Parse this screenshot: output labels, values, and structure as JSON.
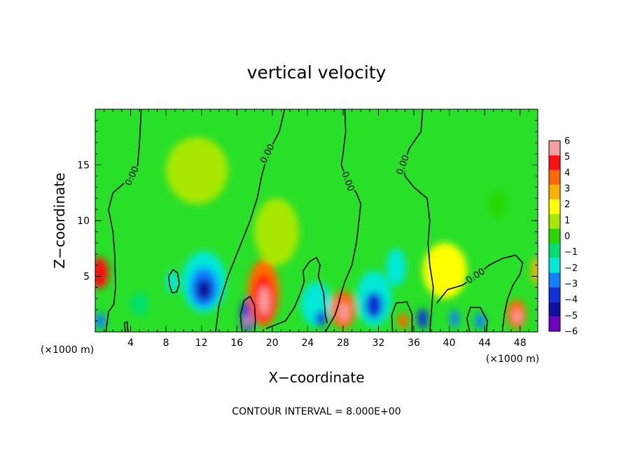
{
  "chart_data": {
    "type": "heatmap",
    "title": "vertical velocity",
    "xlabel": "X−coordinate",
    "ylabel": "Z−coordinate",
    "x_unit_left": "(×1000 m)",
    "x_unit_right": "(×1000 m)",
    "xlim": [
      0,
      50
    ],
    "ylim": [
      0,
      20
    ],
    "x_ticks": [
      {
        "value": 4,
        "label": "4"
      },
      {
        "value": 8,
        "label": "8"
      },
      {
        "value": 12,
        "label": "12"
      },
      {
        "value": 16,
        "label": "16"
      },
      {
        "value": 20,
        "label": "20"
      },
      {
        "value": 24,
        "label": "24"
      },
      {
        "value": 28,
        "label": "28"
      },
      {
        "value": 32,
        "label": "32"
      },
      {
        "value": 36,
        "label": "36"
      },
      {
        "value": 40,
        "label": "40"
      },
      {
        "value": 44,
        "label": "44"
      },
      {
        "value": 48,
        "label": "48"
      }
    ],
    "y_ticks": [
      {
        "value": 5,
        "label": "5"
      },
      {
        "value": 10,
        "label": "10"
      },
      {
        "value": 15,
        "label": "15"
      }
    ],
    "colorbar": {
      "levels": [
        "6",
        "5",
        "4",
        "3",
        "2",
        "1",
        "0",
        "−1",
        "−2",
        "−3",
        "−4",
        "−5",
        "−6"
      ],
      "colors": [
        "#f4a0a0",
        "#ff1010",
        "#ff6a00",
        "#ffb000",
        "#ffff00",
        "#a8e800",
        "#28d800",
        "#00e070",
        "#00e8d8",
        "#1080ff",
        "#1030d8",
        "#1010a0",
        "#7000c0"
      ]
    },
    "background_color": "#28e028",
    "cells": [
      {
        "x": 0.5,
        "z": 5.3,
        "w": 2.0,
        "h": 2.8,
        "value": 4.5
      },
      {
        "x": 0.6,
        "z": 1.0,
        "w": 1.2,
        "h": 1.4,
        "value": -3.5
      },
      {
        "x": 5.0,
        "z": 2.5,
        "w": 2.0,
        "h": 2.0,
        "value": -1.0
      },
      {
        "x": 12.3,
        "z": 4.5,
        "w": 5.0,
        "h": 5.5,
        "value": -2.0
      },
      {
        "x": 12.3,
        "z": 4.0,
        "w": 3.2,
        "h": 3.6,
        "value": -3.5
      },
      {
        "x": 12.3,
        "z": 3.8,
        "w": 1.8,
        "h": 2.0,
        "value": -5.0
      },
      {
        "x": 8.7,
        "z": 4.5,
        "w": 1.4,
        "h": 2.0,
        "value": -2.0
      },
      {
        "x": 17.2,
        "z": 1.5,
        "w": 1.6,
        "h": 3.0,
        "value": -4.5
      },
      {
        "x": 17.2,
        "z": 1.0,
        "w": 0.6,
        "h": 1.0,
        "value": 6.0
      },
      {
        "x": 19.0,
        "z": 3.5,
        "w": 3.6,
        "h": 6.0,
        "value": 3.5
      },
      {
        "x": 19.0,
        "z": 3.0,
        "w": 2.4,
        "h": 4.2,
        "value": 5.0
      },
      {
        "x": 19.1,
        "z": 2.8,
        "w": 1.2,
        "h": 2.6,
        "value": 6.0
      },
      {
        "x": 25.0,
        "z": 2.5,
        "w": 3.5,
        "h": 4.0,
        "value": -2.0
      },
      {
        "x": 25.5,
        "z": 1.2,
        "w": 1.2,
        "h": 1.4,
        "value": -4.0
      },
      {
        "x": 28.0,
        "z": 2.0,
        "w": 2.8,
        "h": 3.4,
        "value": 4.0
      },
      {
        "x": 28.1,
        "z": 1.8,
        "w": 1.1,
        "h": 1.6,
        "value": 6.0
      },
      {
        "x": 31.5,
        "z": 3.0,
        "w": 4.0,
        "h": 5.0,
        "value": -2.0
      },
      {
        "x": 31.5,
        "z": 2.4,
        "w": 2.0,
        "h": 2.4,
        "value": -4.0
      },
      {
        "x": 34.0,
        "z": 5.8,
        "w": 2.2,
        "h": 3.4,
        "value": -2.0
      },
      {
        "x": 34.8,
        "z": 1.0,
        "w": 1.2,
        "h": 1.4,
        "value": 4.0
      },
      {
        "x": 37.0,
        "z": 1.2,
        "w": 1.2,
        "h": 1.8,
        "value": -4.0
      },
      {
        "x": 39.5,
        "z": 5.5,
        "w": 5.0,
        "h": 5.0,
        "value": 1.5
      },
      {
        "x": 40.6,
        "z": 1.2,
        "w": 1.0,
        "h": 1.6,
        "value": -3.0
      },
      {
        "x": 43.5,
        "z": 1.0,
        "w": 1.2,
        "h": 1.4,
        "value": -3.5
      },
      {
        "x": 47.6,
        "z": 1.6,
        "w": 2.2,
        "h": 2.6,
        "value": 4.0
      },
      {
        "x": 47.7,
        "z": 1.4,
        "w": 0.9,
        "h": 1.2,
        "value": 6.0
      },
      {
        "x": 49.8,
        "z": 5.5,
        "w": 1.0,
        "h": 2.4,
        "value": 3.0
      },
      {
        "x": 11.5,
        "z": 14.5,
        "w": 7.0,
        "h": 6.0,
        "value": 0.5
      },
      {
        "x": 20.5,
        "z": 9.0,
        "w": 5.0,
        "h": 6.0,
        "value": 1.2
      },
      {
        "x": 45.5,
        "z": 11.5,
        "w": 2.0,
        "h": 2.5,
        "value": -0.5
      }
    ],
    "contours": [
      {
        "value": 0,
        "label": "0.00",
        "points": [
          [
            5.2,
            20
          ],
          [
            5.0,
            17
          ],
          [
            4.8,
            15
          ],
          [
            4.2,
            14
          ],
          [
            2.0,
            12.5
          ],
          [
            1.5,
            11
          ],
          [
            2.0,
            9
          ],
          [
            2.2,
            7
          ],
          [
            2.3,
            4
          ],
          [
            2.1,
            2.5
          ],
          [
            1.5,
            1.8
          ],
          [
            1.2,
            0
          ]
        ]
      },
      {
        "value": 0,
        "label": "0.00",
        "points": [
          [
            21.4,
            20
          ],
          [
            20.8,
            18
          ],
          [
            19.5,
            16
          ],
          [
            18.8,
            14
          ],
          [
            18.3,
            12
          ],
          [
            17.5,
            10
          ],
          [
            16.5,
            8
          ],
          [
            15.0,
            5
          ],
          [
            14.0,
            2.5
          ],
          [
            13.6,
            0
          ]
        ]
      },
      {
        "value": 0,
        "label": "0.00",
        "points": [
          [
            28.2,
            20
          ],
          [
            28.3,
            18
          ],
          [
            28.0,
            16
          ],
          [
            27.8,
            15
          ],
          [
            28.5,
            13.5
          ],
          [
            29.5,
            12.5
          ],
          [
            30.0,
            11.5
          ],
          [
            29.8,
            10
          ],
          [
            29.5,
            8
          ],
          [
            29.0,
            6
          ],
          [
            28.2,
            4.5
          ],
          [
            27.8,
            3.5
          ],
          [
            27.5,
            2.5
          ],
          [
            27.1,
            1.5
          ],
          [
            26.5,
            0.7
          ],
          [
            26.0,
            0
          ]
        ]
      },
      {
        "value": 0,
        "label": "0.00",
        "points": [
          [
            37.0,
            20
          ],
          [
            36.8,
            18
          ],
          [
            35.5,
            16.5
          ],
          [
            34.8,
            15
          ],
          [
            35.0,
            14
          ],
          [
            36.0,
            13
          ],
          [
            37.5,
            12
          ],
          [
            37.8,
            10
          ],
          [
            37.6,
            8
          ],
          [
            37.8,
            6
          ],
          [
            38.2,
            4
          ],
          [
            38.0,
            2
          ],
          [
            37.8,
            0
          ]
        ]
      },
      {
        "value": 0,
        "label": "0.00",
        "points": [
          [
            38.6,
            2.6
          ],
          [
            39.8,
            3.8
          ],
          [
            41.5,
            4.2
          ],
          [
            43.0,
            5.0
          ],
          [
            44.5,
            6.0
          ],
          [
            46.0,
            6.6
          ],
          [
            47.5,
            6.9
          ],
          [
            48.3,
            6.2
          ],
          [
            48.0,
            5.2
          ],
          [
            47.2,
            4.2
          ],
          [
            46.6,
            3.0
          ],
          [
            46.2,
            1.5
          ],
          [
            46.0,
            0
          ]
        ]
      },
      {
        "value": 0,
        "label": "",
        "points": [
          [
            19.3,
            0.3
          ],
          [
            21.5,
            1.0
          ],
          [
            22.5,
            2.2
          ],
          [
            23.2,
            3.5
          ],
          [
            23.6,
            4.5
          ],
          [
            23.5,
            5.5
          ],
          [
            24.2,
            6.3
          ],
          [
            25.0,
            6.7
          ],
          [
            25.4,
            6.0
          ],
          [
            25.2,
            5.0
          ],
          [
            25.5,
            4.3
          ],
          [
            25.8,
            3.5
          ],
          [
            25.9,
            2.5
          ],
          [
            26.0,
            1.5
          ],
          [
            26.2,
            0.8
          ]
        ]
      },
      {
        "value": 0,
        "label": "",
        "points": [
          [
            16.6,
            0
          ],
          [
            16.4,
            1.5
          ],
          [
            16.8,
            2.8
          ],
          [
            17.5,
            3.2
          ],
          [
            18.0,
            2.4
          ],
          [
            18.1,
            1.0
          ],
          [
            18.0,
            0
          ]
        ]
      },
      {
        "value": 0,
        "label": "",
        "points": [
          [
            8.7,
            3.5
          ],
          [
            8.4,
            4.2
          ],
          [
            8.3,
            5.0
          ],
          [
            8.8,
            5.6
          ],
          [
            9.3,
            5.3
          ],
          [
            9.5,
            4.3
          ],
          [
            9.2,
            3.6
          ],
          [
            8.7,
            3.5
          ]
        ]
      },
      {
        "value": 0,
        "label": "",
        "points": [
          [
            3.4,
            0
          ],
          [
            3.3,
            0.8
          ],
          [
            3.6,
            0.9
          ],
          [
            3.7,
            0
          ]
        ]
      },
      {
        "value": 0,
        "label": "",
        "points": [
          [
            42.3,
            0
          ],
          [
            42.0,
            1.2
          ],
          [
            42.4,
            2.2
          ],
          [
            43.5,
            2.2
          ],
          [
            44.3,
            1.0
          ],
          [
            44.2,
            0
          ]
        ]
      },
      {
        "value": 0,
        "label": "",
        "points": [
          [
            33.6,
            0
          ],
          [
            33.5,
            1.5
          ],
          [
            34.0,
            2.6
          ],
          [
            35.2,
            2.7
          ],
          [
            35.8,
            1.6
          ],
          [
            35.8,
            0
          ]
        ]
      }
    ],
    "contour_interval_text": "CONTOUR INTERVAL =  8.000E+00"
  }
}
